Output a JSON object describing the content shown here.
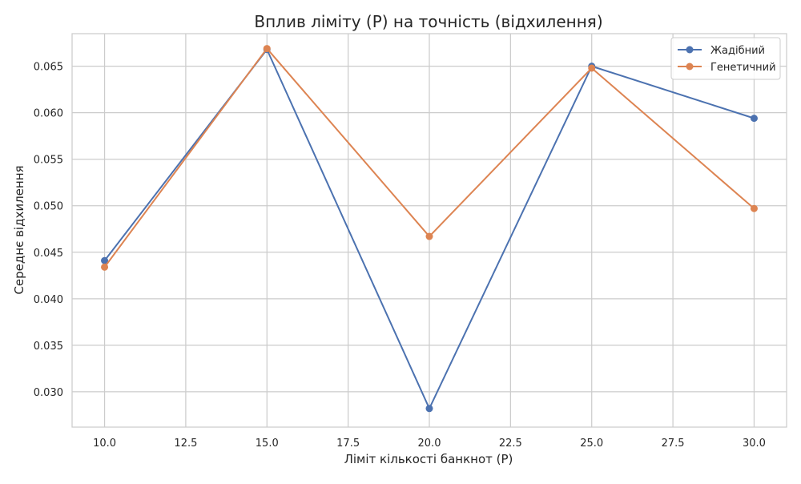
{
  "chart_data": {
    "type": "line",
    "title": "Вплив ліміту (P) на точність (відхилення)",
    "xlabel": "Ліміт кількості банкнот (P)",
    "ylabel": "Середнє відхилення",
    "x": [
      10,
      15,
      20,
      25,
      30
    ],
    "xlim": [
      9,
      31
    ],
    "ylim": [
      0.0262,
      0.0685
    ],
    "xticks": [
      10.0,
      12.5,
      15.0,
      17.5,
      20.0,
      22.5,
      25.0,
      27.5,
      30.0
    ],
    "xtick_labels": [
      "10.0",
      "12.5",
      "15.0",
      "17.5",
      "20.0",
      "22.5",
      "25.0",
      "27.5",
      "30.0"
    ],
    "yticks": [
      0.03,
      0.035,
      0.04,
      0.045,
      0.05,
      0.055,
      0.06,
      0.065
    ],
    "ytick_labels": [
      "0.030",
      "0.035",
      "0.040",
      "0.045",
      "0.050",
      "0.055",
      "0.060",
      "0.065"
    ],
    "grid": true,
    "legend_position": "top-right",
    "series": [
      {
        "name": "Жадібний",
        "color": "#4c72b0",
        "values": [
          0.0441,
          0.0668,
          0.0282,
          0.065,
          0.0594
        ]
      },
      {
        "name": "Генетичний",
        "color": "#dd8452",
        "values": [
          0.0434,
          0.0669,
          0.0467,
          0.0648,
          0.0497
        ]
      }
    ]
  }
}
